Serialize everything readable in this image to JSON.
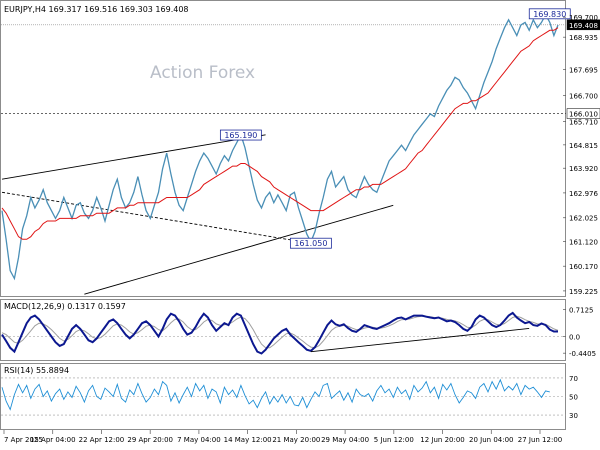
{
  "chart_data": [
    {
      "type": "line",
      "panel": "price",
      "header": "EURJPY,H4  169.317 169.516 169.303 169.408",
      "watermark": "Action Forex",
      "y_ticks": [
        "169.700",
        "168.935",
        "167.695",
        "166.700",
        "165.710",
        "164.815",
        "163.920",
        "162.976",
        "162.025",
        "161.120",
        "160.170",
        "159.225"
      ],
      "current_price_label": "169.408",
      "current_price": 169.408,
      "level_label": "166.010",
      "level": 166.01,
      "annotations": [
        {
          "text": "169.830",
          "x_index": 133,
          "y": 169.83
        },
        {
          "text": "165.190",
          "x_index": 58,
          "y": 165.19
        },
        {
          "text": "161.050",
          "x_index": 75,
          "y": 161.05
        }
      ],
      "ylim": [
        159.03,
        170.32
      ],
      "colors": {
        "price": "#4a8fb6",
        "ma": "#e01515",
        "trendline": "#000000",
        "tag_border": "#1c2a9a",
        "tag_text": "#1c2a9a"
      },
      "series": [
        {
          "values": [
            162.3,
            161.2,
            160.0,
            159.7,
            160.5,
            161.6,
            162.1,
            162.8,
            162.4,
            162.7,
            163.1,
            162.6,
            162.3,
            162.0,
            162.3,
            162.8,
            162.4,
            162.0,
            162.5,
            162.6,
            162.2,
            162.0,
            162.3,
            162.8,
            162.4,
            161.9,
            162.5,
            163.1,
            163.5,
            162.8,
            162.4,
            162.6,
            163.0,
            163.6,
            162.9,
            162.3,
            162.0,
            162.5,
            163.0,
            163.9,
            164.5,
            163.7,
            163.0,
            162.5,
            162.3,
            162.8,
            163.3,
            163.8,
            164.2,
            164.5,
            164.3,
            164.0,
            163.7,
            164.1,
            164.4,
            164.2,
            164.6,
            164.9,
            165.2,
            164.7,
            164.0,
            163.3,
            162.7,
            162.4,
            162.8,
            163.0,
            162.6,
            162.9,
            162.6,
            162.3,
            162.9,
            163.0,
            162.4,
            161.9,
            161.4,
            161.1,
            161.5,
            162.2,
            162.8,
            163.5,
            163.8,
            163.2,
            163.4,
            163.6,
            163.1,
            162.9,
            162.8,
            163.2,
            163.6,
            163.3,
            163.1,
            163.0,
            163.4,
            163.8,
            164.2,
            164.4,
            164.6,
            164.8,
            164.6,
            164.9,
            165.2,
            165.4,
            165.6,
            165.8,
            166.0,
            165.9,
            166.3,
            166.6,
            166.9,
            167.1,
            167.4,
            167.3,
            167.0,
            166.8,
            166.5,
            166.2,
            166.7,
            167.2,
            167.6,
            168.0,
            168.5,
            168.9,
            169.3,
            169.6,
            169.3,
            169.0,
            169.4,
            169.5,
            169.2,
            169.6,
            169.3,
            169.5,
            169.8,
            169.5,
            169.0,
            169.4
          ]
        },
        {
          "values": [
            162.4,
            162.2,
            161.9,
            161.6,
            161.3,
            161.2,
            161.2,
            161.3,
            161.5,
            161.6,
            161.8,
            161.9,
            161.9,
            161.9,
            162.0,
            162.0,
            162.0,
            162.0,
            162.0,
            162.1,
            162.1,
            162.1,
            162.1,
            162.2,
            162.2,
            162.2,
            162.2,
            162.3,
            162.4,
            162.4,
            162.4,
            162.5,
            162.5,
            162.6,
            162.6,
            162.6,
            162.6,
            162.6,
            162.6,
            162.7,
            162.8,
            162.8,
            162.8,
            162.8,
            162.8,
            162.8,
            162.9,
            163.0,
            163.1,
            163.3,
            163.4,
            163.5,
            163.6,
            163.7,
            163.8,
            163.9,
            164.0,
            164.0,
            164.1,
            164.1,
            164.0,
            163.9,
            163.8,
            163.6,
            163.5,
            163.4,
            163.2,
            163.1,
            163.0,
            162.9,
            162.8,
            162.7,
            162.6,
            162.5,
            162.4,
            162.3,
            162.3,
            162.3,
            162.3,
            162.4,
            162.5,
            162.6,
            162.7,
            162.8,
            162.9,
            163.0,
            163.1,
            163.1,
            163.2,
            163.2,
            163.3,
            163.3,
            163.3,
            163.4,
            163.5,
            163.6,
            163.7,
            163.8,
            163.9,
            164.1,
            164.3,
            164.5,
            164.6,
            164.8,
            165.0,
            165.2,
            165.4,
            165.6,
            165.8,
            166.0,
            166.2,
            166.3,
            166.4,
            166.4,
            166.5,
            166.5,
            166.6,
            166.7,
            166.8,
            167.0,
            167.2,
            167.4,
            167.6,
            167.8,
            168.0,
            168.2,
            168.4,
            168.5,
            168.6,
            168.8,
            168.9,
            169.0,
            169.1,
            169.2,
            169.2,
            169.3
          ]
        }
      ],
      "x_tick_labels": [
        "7 Apr 2025",
        "15 Apr 04:00",
        "22 Apr 12:00",
        "29 Apr 20:00",
        "7 May 04:00",
        "14 May 12:00",
        "21 May 20:00",
        "29 May 04:00",
        "5 Jun 12:00",
        "12 Jun 20:00",
        "20 Jun 04:00",
        "27 Jun 12:00"
      ]
    },
    {
      "type": "line",
      "panel": "macd",
      "header": "MACD(12,26,9)  0.1317  0.1597",
      "y_ticks": [
        "0.7125",
        "0.0",
        "-0.4405"
      ],
      "ylim": [
        -0.62,
        0.96
      ],
      "colors": {
        "macd": "#0c1890",
        "signal": "#a0a0a0",
        "trendline": "#000000"
      },
      "series": [
        {
          "values": [
            0.05,
            -0.12,
            -0.3,
            -0.4,
            -0.15,
            0.1,
            0.35,
            0.5,
            0.55,
            0.45,
            0.3,
            0.15,
            0.0,
            -0.15,
            -0.25,
            -0.2,
            0.0,
            0.2,
            0.3,
            0.2,
            0.05,
            -0.1,
            -0.15,
            -0.05,
            0.1,
            0.25,
            0.4,
            0.45,
            0.35,
            0.2,
            0.05,
            -0.05,
            0.05,
            0.2,
            0.35,
            0.4,
            0.3,
            0.15,
            0.0,
            0.2,
            0.45,
            0.6,
            0.55,
            0.4,
            0.2,
            0.05,
            0.1,
            0.25,
            0.45,
            0.6,
            0.5,
            0.3,
            0.15,
            0.25,
            0.35,
            0.3,
            0.5,
            0.6,
            0.55,
            0.3,
            0.05,
            -0.2,
            -0.4,
            -0.45,
            -0.35,
            -0.2,
            -0.05,
            0.05,
            0.15,
            0.2,
            0.05,
            -0.05,
            -0.15,
            -0.25,
            -0.35,
            -0.38,
            -0.28,
            -0.1,
            0.1,
            0.3,
            0.42,
            0.32,
            0.28,
            0.32,
            0.22,
            0.15,
            0.12,
            0.2,
            0.3,
            0.26,
            0.22,
            0.2,
            0.25,
            0.3,
            0.35,
            0.42,
            0.48,
            0.5,
            0.45,
            0.5,
            0.55,
            0.55,
            0.55,
            0.52,
            0.5,
            0.48,
            0.5,
            0.45,
            0.4,
            0.42,
            0.38,
            0.3,
            0.2,
            0.15,
            0.25,
            0.45,
            0.55,
            0.5,
            0.4,
            0.3,
            0.25,
            0.3,
            0.42,
            0.55,
            0.62,
            0.5,
            0.42,
            0.35,
            0.38,
            0.3,
            0.28,
            0.34,
            0.3,
            0.18,
            0.13,
            0.13
          ]
        },
        {
          "values": [
            0.1,
            0.05,
            -0.05,
            -0.15,
            -0.18,
            -0.1,
            0.02,
            0.15,
            0.28,
            0.35,
            0.33,
            0.27,
            0.18,
            0.07,
            -0.05,
            -0.12,
            -0.08,
            0.02,
            0.13,
            0.18,
            0.15,
            0.07,
            -0.02,
            -0.06,
            -0.03,
            0.06,
            0.17,
            0.28,
            0.33,
            0.3,
            0.22,
            0.12,
            0.06,
            0.1,
            0.18,
            0.27,
            0.3,
            0.26,
            0.18,
            0.15,
            0.24,
            0.36,
            0.45,
            0.46,
            0.38,
            0.26,
            0.18,
            0.18,
            0.27,
            0.38,
            0.45,
            0.42,
            0.33,
            0.29,
            0.31,
            0.32,
            0.38,
            0.46,
            0.51,
            0.47,
            0.35,
            0.18,
            -0.02,
            -0.2,
            -0.3,
            -0.3,
            -0.22,
            -0.12,
            -0.02,
            0.07,
            0.09,
            0.04,
            -0.04,
            -0.12,
            -0.21,
            -0.28,
            -0.3,
            -0.24,
            -0.12,
            0.02,
            0.16,
            0.24,
            0.27,
            0.29,
            0.27,
            0.22,
            0.18,
            0.18,
            0.22,
            0.24,
            0.24,
            0.22,
            0.22,
            0.24,
            0.28,
            0.33,
            0.39,
            0.44,
            0.45,
            0.46,
            0.49,
            0.52,
            0.53,
            0.53,
            0.52,
            0.5,
            0.49,
            0.48,
            0.45,
            0.43,
            0.41,
            0.37,
            0.31,
            0.24,
            0.23,
            0.3,
            0.4,
            0.45,
            0.44,
            0.38,
            0.32,
            0.3,
            0.34,
            0.42,
            0.5,
            0.53,
            0.5,
            0.44,
            0.4,
            0.37,
            0.33,
            0.32,
            0.32,
            0.26,
            0.2,
            0.16
          ]
        }
      ],
      "trendline": {
        "from": {
          "x_index": 75,
          "y": -0.4
        },
        "to": {
          "x_index": 128,
          "y": 0.21
        }
      }
    },
    {
      "type": "line",
      "panel": "rsi",
      "header": "RSI(14) 55.8894",
      "y_ticks": [
        "70",
        "50",
        "30"
      ],
      "ylim": [
        15,
        85
      ],
      "colors": {
        "rsi": "#1f8fd6",
        "levels": "#9a9a9a"
      },
      "series": [
        {
          "values": [
            60,
            45,
            36,
            52,
            63,
            54,
            62,
            48,
            58,
            63,
            50,
            56,
            45,
            53,
            58,
            47,
            55,
            49,
            61,
            54,
            44,
            56,
            62,
            50,
            47,
            59,
            55,
            50,
            63,
            48,
            44,
            57,
            52,
            64,
            53,
            44,
            49,
            58,
            52,
            66,
            62,
            45,
            54,
            43,
            52,
            60,
            50,
            64,
            56,
            62,
            48,
            58,
            55,
            43,
            60,
            52,
            57,
            49,
            62,
            51,
            42,
            46,
            38,
            48,
            55,
            42,
            50,
            44,
            52,
            43,
            50,
            41,
            40,
            49,
            38,
            47,
            55,
            50,
            62,
            64,
            48,
            52,
            56,
            46,
            54,
            44,
            58,
            52,
            50,
            53,
            45,
            56,
            62,
            54,
            58,
            49,
            60,
            53,
            57,
            47,
            62,
            55,
            59,
            66,
            54,
            60,
            48,
            63,
            57,
            64,
            52,
            43,
            49,
            56,
            54,
            48,
            60,
            64,
            55,
            66,
            58,
            68,
            56,
            61,
            57,
            64,
            52,
            62,
            58,
            60,
            55,
            49,
            56,
            55
          ]
        }
      ]
    }
  ]
}
